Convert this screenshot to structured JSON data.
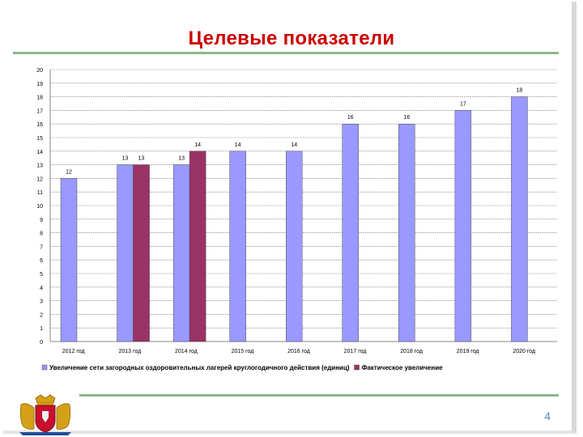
{
  "slide": {
    "title": "Целевые показатели",
    "page_number": "4"
  },
  "chart_data": {
    "type": "bar",
    "categories": [
      "2012 год",
      "2013 год",
      "2014 год",
      "2015 год",
      "2016 год",
      "2017 год",
      "2018 год",
      "2019 год",
      "2020 год"
    ],
    "series": [
      {
        "name": "Увеличение сети загородных оздоровительных лагерей круглогодичного действия (единиц)",
        "values": [
          12,
          13,
          13,
          14,
          14,
          16,
          16,
          17,
          18
        ],
        "color": "#9999ff"
      },
      {
        "name": "Фактическое увеличение",
        "values": [
          null,
          13,
          14,
          null,
          null,
          null,
          null,
          null,
          null
        ],
        "color": "#993366"
      }
    ],
    "ylim": [
      0,
      20
    ],
    "yticks": [
      0,
      1,
      2,
      3,
      4,
      5,
      6,
      7,
      8,
      9,
      10,
      11,
      12,
      13,
      14,
      15,
      16,
      17,
      18,
      19,
      20
    ],
    "grid": true,
    "legend_position": "bottom",
    "data_labels": true
  }
}
